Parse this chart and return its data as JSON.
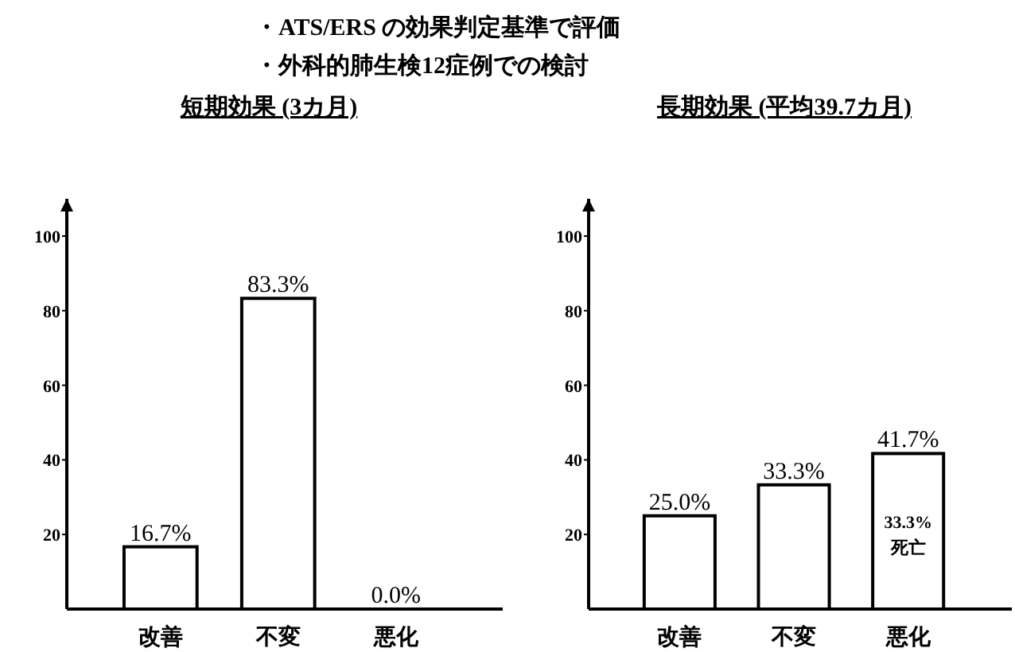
{
  "chart_data": [
    {
      "type": "bar",
      "title": "短期効果 (3カ月)",
      "categories": [
        "改善",
        "不変",
        "悪化"
      ],
      "values": [
        16.7,
        83.3,
        0.0
      ],
      "value_labels": [
        "16.7%",
        "83.3%",
        "0.0%"
      ],
      "color": "#ffffff",
      "ylim": [
        0,
        110
      ],
      "yticks": [
        20,
        40,
        60,
        80,
        100
      ],
      "grid": false,
      "annotations": [
        "・ATS/ERS の効果判定基準で評価",
        "・外科的肺生検12症例での検討"
      ]
    },
    {
      "type": "bar",
      "title": "長期効果 (平均39.7カ月)",
      "categories": [
        "改善",
        "不変",
        "悪化"
      ],
      "values": [
        25.0,
        33.3,
        41.7
      ],
      "value_labels": [
        "25.0%",
        "33.3%",
        "41.7%"
      ],
      "color": "#ffffff",
      "ylim": [
        0,
        110
      ],
      "yticks": [
        20,
        40,
        60,
        80,
        100
      ],
      "grid": false,
      "annotations": [
        "33.3%",
        "死亡"
      ]
    }
  ]
}
